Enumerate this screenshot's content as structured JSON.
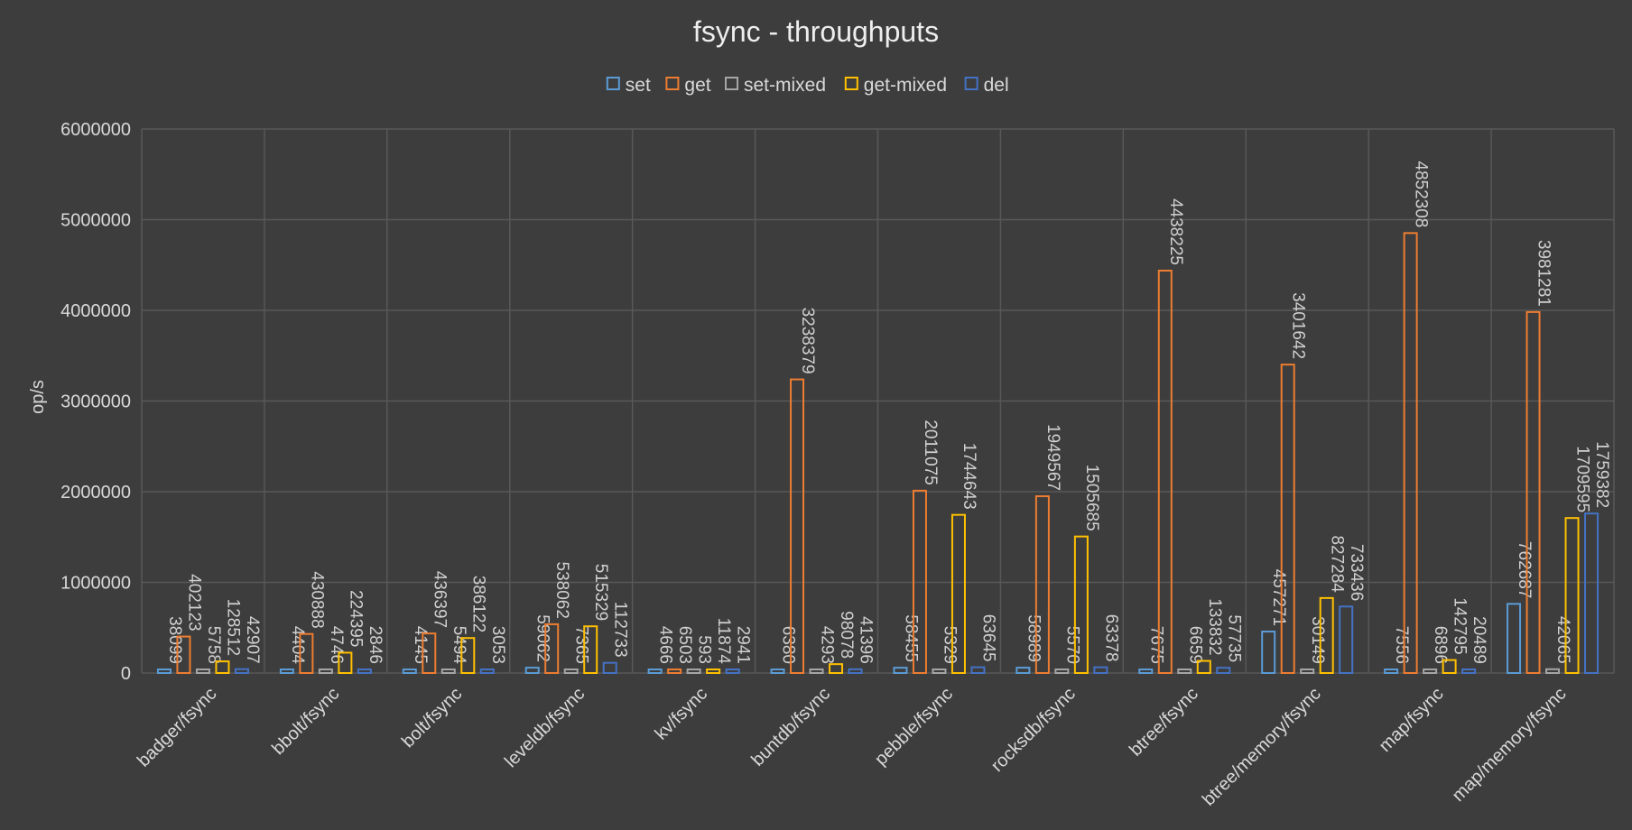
{
  "chart_data": {
    "type": "bar",
    "title": "fsync - throughputs",
    "xlabel": "",
    "ylabel": "op/s",
    "ylim": [
      0,
      6000000
    ],
    "yticks": [
      0,
      1000000,
      2000000,
      3000000,
      4000000,
      5000000,
      6000000
    ],
    "grid": true,
    "legend_position": "top",
    "categories": [
      "badger/fsync",
      "bbolt/fsync",
      "bolt/fsync",
      "leveldb/fsync",
      "kv/fsync",
      "buntdb/fsync",
      "pebble/fsync",
      "rocksdb/fsync",
      "btree/fsync",
      "btree/memory/fsync",
      "map/fsync",
      "map/memory/fsync"
    ],
    "series": [
      {
        "name": "set",
        "color": "#5b9bd5",
        "values": [
          38099,
          4404,
          4145,
          59062,
          4666,
          6380,
          58455,
          58989,
          7675,
          457271,
          7556,
          762687
        ]
      },
      {
        "name": "get",
        "color": "#ed7d31",
        "values": [
          402123,
          430888,
          436397,
          538062,
          6503,
          3238379,
          2011075,
          1949567,
          4438225,
          3401642,
          4852308,
          3981281
        ]
      },
      {
        "name": "set-mixed",
        "color": "#a5a5a5",
        "values": [
          5758,
          4746,
          5494,
          7365,
          593,
          4293,
          5329,
          5570,
          6659,
          30149,
          6896,
          42065
        ]
      },
      {
        "name": "get-mixed",
        "color": "#ffc000",
        "values": [
          128512,
          224395,
          386122,
          515329,
          11874,
          98078,
          1744643,
          1505685,
          133832,
          827284,
          142795,
          1709595
        ]
      },
      {
        "name": "del",
        "color": "#4472c4",
        "values": [
          42907,
          2846,
          3053,
          112733,
          2941,
          41396,
          63645,
          63378,
          57735,
          733436,
          20489,
          1759382
        ]
      }
    ]
  }
}
